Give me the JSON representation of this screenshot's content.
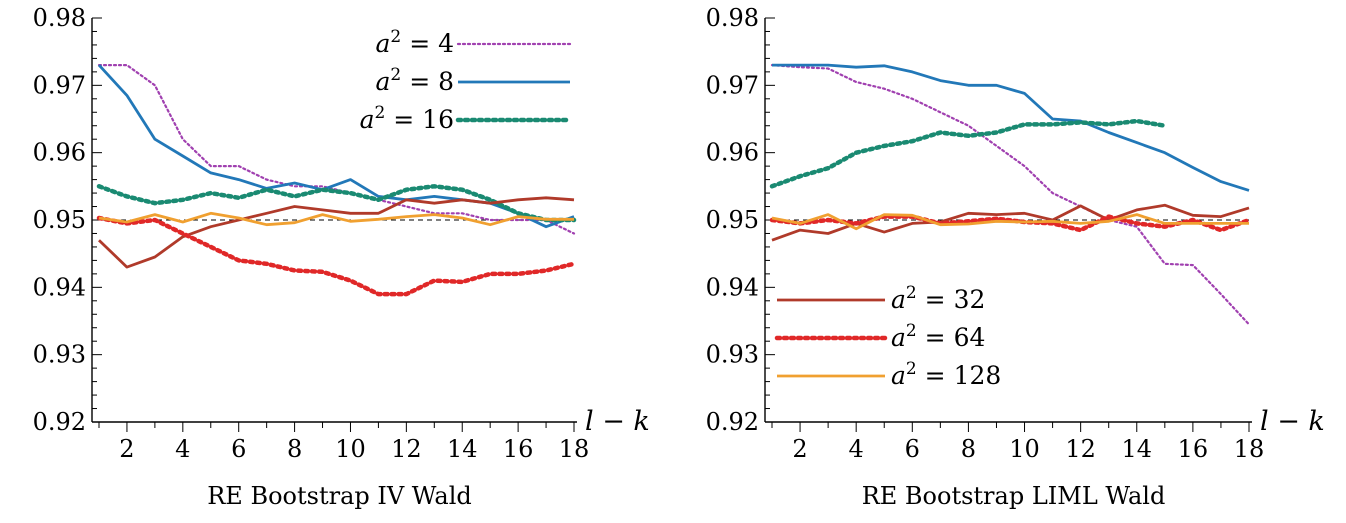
{
  "chart_data": [
    {
      "type": "line",
      "xlabel": "RE Bootstrap IV Wald",
      "axis_end_label": "l − k",
      "xlim": [
        1,
        18
      ],
      "ylim": [
        0.92,
        0.98
      ],
      "x_ticks": [
        2,
        4,
        6,
        8,
        10,
        12,
        14,
        16,
        18
      ],
      "y_ticks": [
        0.92,
        0.93,
        0.94,
        0.95,
        0.96,
        0.97,
        0.98
      ],
      "y_tick_labels": [
        "0.92",
        "0.93",
        "0.94",
        "0.95",
        "0.96",
        "0.97",
        "0.98"
      ],
      "reference_line": 0.95,
      "legend_position": "top-right",
      "legend_series": [
        0,
        1,
        2
      ],
      "x": [
        1,
        2,
        3,
        4,
        5,
        6,
        7,
        8,
        9,
        10,
        11,
        12,
        13,
        14,
        15,
        16,
        17,
        18
      ],
      "series": [
        {
          "name": "a^2 = 4",
          "sup": "2",
          "rhs": " = 4",
          "color": "#a040b0",
          "dash": "2,3",
          "width": 2.2,
          "values": [
            0.973,
            0.973,
            0.97,
            0.962,
            0.958,
            0.958,
            0.956,
            0.955,
            0.955,
            0.954,
            0.953,
            0.952,
            0.951,
            0.951,
            0.95,
            0.95,
            0.95,
            0.948
          ]
        },
        {
          "name": "a^2 = 8",
          "sup": "2",
          "rhs": " = 8",
          "color": "#2278b8",
          "dash": "",
          "width": 2.8,
          "values": [
            0.973,
            0.9685,
            0.962,
            0.9595,
            0.957,
            0.956,
            0.9547,
            0.9555,
            0.9545,
            0.956,
            0.9535,
            0.953,
            0.9535,
            0.953,
            0.9525,
            0.951,
            0.949,
            0.9505
          ]
        },
        {
          "name": "a^2 = 16",
          "sup": "2",
          "rhs": " = 16",
          "color": "#1a8a72",
          "dash": "3,4",
          "width": 4.5,
          "values": [
            0.955,
            0.9535,
            0.9525,
            0.953,
            0.954,
            0.9533,
            0.9545,
            0.9535,
            0.9545,
            0.954,
            0.953,
            0.9545,
            0.955,
            0.9545,
            0.953,
            0.951,
            0.95,
            0.95
          ]
        },
        {
          "name": "a^2 = 32",
          "sup": "2",
          "rhs": " = 32",
          "color": "#b03a2a",
          "dash": "",
          "width": 2.8,
          "values": [
            0.947,
            0.943,
            0.9445,
            0.9475,
            0.949,
            0.95,
            0.951,
            0.952,
            0.9515,
            0.951,
            0.951,
            0.953,
            0.9525,
            0.953,
            0.9525,
            0.953,
            0.9533,
            0.953
          ]
        },
        {
          "name": "a^2 = 64",
          "sup": "2",
          "rhs": " = 64",
          "color": "#e02828",
          "dash": "3,4",
          "width": 4.5,
          "values": [
            0.9503,
            0.9495,
            0.95,
            0.948,
            0.946,
            0.944,
            0.9435,
            0.9425,
            0.9423,
            0.941,
            0.939,
            0.939,
            0.941,
            0.9408,
            0.942,
            0.942,
            0.9425,
            0.9435
          ]
        },
        {
          "name": "a^2 = 128",
          "sup": "2",
          "rhs": " = 128",
          "color": "#f0a030",
          "dash": "",
          "width": 2.8,
          "values": [
            0.9503,
            0.9497,
            0.9508,
            0.9497,
            0.951,
            0.9503,
            0.9493,
            0.9496,
            0.9508,
            0.9498,
            0.9501,
            0.9505,
            0.9508,
            0.9503,
            0.9493,
            0.9505,
            0.9501,
            0.9501
          ]
        }
      ]
    },
    {
      "type": "line",
      "xlabel": "RE Bootstrap LIML Wald",
      "axis_end_label": "l − k",
      "xlim": [
        1,
        18
      ],
      "ylim": [
        0.92,
        0.98
      ],
      "x_ticks": [
        2,
        4,
        6,
        8,
        10,
        12,
        14,
        16,
        18
      ],
      "y_ticks": [
        0.92,
        0.93,
        0.94,
        0.95,
        0.96,
        0.97,
        0.98
      ],
      "y_tick_labels": [
        "0.92",
        "0.93",
        "0.94",
        "0.95",
        "0.96",
        "0.97",
        "0.98"
      ],
      "reference_line": 0.95,
      "legend_position": "bottom-left",
      "legend_series": [
        3,
        4,
        5
      ],
      "x": [
        1,
        2,
        3,
        4,
        5,
        6,
        7,
        8,
        9,
        10,
        11,
        12,
        13,
        14,
        15,
        16,
        17,
        18
      ],
      "series": [
        {
          "name": "a^2 = 4",
          "sup": "2",
          "rhs": " = 4",
          "color": "#a040b0",
          "dash": "2,3",
          "width": 2.2,
          "values": [
            0.973,
            0.9727,
            0.9725,
            0.9705,
            0.9695,
            0.968,
            0.966,
            0.964,
            0.961,
            0.958,
            0.954,
            0.952,
            0.95,
            0.949,
            0.9435,
            0.9433,
            0.939,
            0.9345
          ]
        },
        {
          "name": "a^2 = 8",
          "sup": "2",
          "rhs": " = 8",
          "color": "#2278b8",
          "dash": "",
          "width": 2.8,
          "values": [
            0.973,
            0.973,
            0.973,
            0.9727,
            0.9729,
            0.972,
            0.9707,
            0.97,
            0.97,
            0.9688,
            0.965,
            0.9647,
            0.963,
            0.9615,
            0.96,
            0.9578,
            0.9557,
            0.9544
          ]
        },
        {
          "name": "a^2 = 16",
          "sup": "2",
          "rhs": " = 16",
          "color": "#1a8a72",
          "dash": "3,4",
          "width": 4.5,
          "values": [
            0.955,
            0.9565,
            0.9577,
            0.96,
            0.961,
            0.9617,
            0.963,
            0.9625,
            0.963,
            0.9642,
            0.9642,
            0.9645,
            0.9642,
            0.9647,
            0.964,
            null,
            null,
            null
          ]
        },
        {
          "name": "a^2 = 32",
          "sup": "2",
          "rhs": " = 32",
          "color": "#b03a2a",
          "dash": "",
          "width": 2.8,
          "values": [
            0.947,
            0.9485,
            0.948,
            0.9495,
            0.9482,
            0.9495,
            0.9497,
            0.951,
            0.9508,
            0.951,
            0.95,
            0.9521,
            0.95,
            0.9515,
            0.9522,
            0.9507,
            0.9505,
            0.9518
          ]
        },
        {
          "name": "a^2 = 64",
          "sup": "2",
          "rhs": " = 64",
          "color": "#e02828",
          "dash": "3,4",
          "width": 4.5,
          "values": [
            0.95,
            0.9495,
            0.95,
            0.9495,
            0.9505,
            0.9505,
            0.9495,
            0.9498,
            0.9502,
            0.9497,
            0.9495,
            0.9485,
            0.9505,
            0.9495,
            0.949,
            0.95,
            0.9485,
            0.95
          ]
        },
        {
          "name": "a^2 = 128",
          "sup": "2",
          "rhs": " = 128",
          "color": "#f0a030",
          "dash": "",
          "width": 2.8,
          "values": [
            0.9503,
            0.9495,
            0.9508,
            0.9487,
            0.9508,
            0.9507,
            0.9493,
            0.9494,
            0.9498,
            0.9497,
            0.9498,
            0.9495,
            0.9498,
            0.9508,
            0.9495,
            0.9495,
            0.9495,
            0.9495
          ]
        }
      ]
    }
  ]
}
